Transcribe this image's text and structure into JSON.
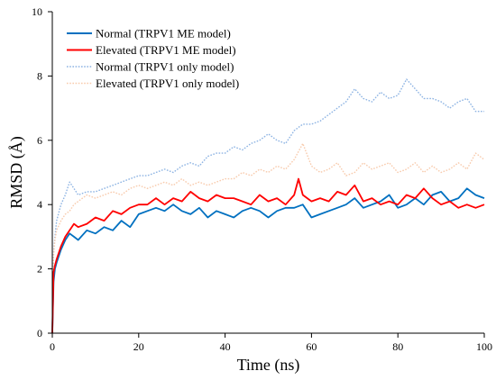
{
  "chart_data": {
    "type": "line",
    "xlabel": "Time (ns)",
    "ylabel": "RMSD (Å)",
    "xlim": [
      0,
      100
    ],
    "ylim": [
      0,
      10
    ],
    "x_ticks": [
      0,
      20,
      40,
      60,
      80,
      100
    ],
    "y_ticks": [
      0,
      2,
      4,
      6,
      8,
      10
    ],
    "grid": false,
    "legend_position": "top-left",
    "series": [
      {
        "name": "Normal (TRPV1 ME model)",
        "color": "#0070c0",
        "style": "solid",
        "x": [
          0,
          0.3,
          0.6,
          1,
          2,
          3,
          4,
          5,
          6,
          8,
          10,
          12,
          14,
          16,
          18,
          20,
          22,
          24,
          26,
          28,
          30,
          32,
          34,
          36,
          38,
          40,
          42,
          44,
          46,
          48,
          50,
          52,
          54,
          56,
          58,
          60,
          62,
          64,
          66,
          68,
          70,
          72,
          74,
          76,
          78,
          80,
          82,
          84,
          86,
          88,
          90,
          92,
          94,
          96,
          98,
          100
        ],
        "y": [
          0.0,
          1.6,
          2.0,
          2.2,
          2.6,
          2.9,
          3.1,
          3.0,
          2.9,
          3.2,
          3.1,
          3.3,
          3.2,
          3.5,
          3.3,
          3.7,
          3.8,
          3.9,
          3.8,
          4.0,
          3.8,
          3.7,
          3.9,
          3.6,
          3.8,
          3.7,
          3.6,
          3.8,
          3.9,
          3.8,
          3.6,
          3.8,
          3.9,
          3.9,
          4.0,
          3.6,
          3.7,
          3.8,
          3.9,
          4.0,
          4.2,
          3.9,
          4.0,
          4.1,
          4.3,
          3.9,
          4.0,
          4.2,
          4.0,
          4.3,
          4.4,
          4.1,
          4.2,
          4.5,
          4.3,
          4.2
        ]
      },
      {
        "name": "Elevated (TRPV1 ME model)",
        "color": "#ff0000",
        "style": "solid",
        "x": [
          0,
          0.3,
          0.6,
          1,
          2,
          3,
          4,
          5,
          6,
          8,
          10,
          12,
          14,
          16,
          18,
          20,
          22,
          24,
          26,
          28,
          30,
          32,
          34,
          36,
          38,
          40,
          42,
          44,
          46,
          48,
          50,
          52,
          54,
          56,
          57,
          58,
          60,
          62,
          64,
          66,
          68,
          70,
          72,
          74,
          76,
          78,
          80,
          82,
          84,
          86,
          88,
          90,
          92,
          94,
          96,
          98,
          100
        ],
        "y": [
          0.0,
          1.9,
          2.1,
          2.3,
          2.7,
          3.0,
          3.2,
          3.4,
          3.3,
          3.4,
          3.6,
          3.5,
          3.8,
          3.7,
          3.9,
          4.0,
          4.0,
          4.2,
          4.0,
          4.2,
          4.1,
          4.4,
          4.2,
          4.1,
          4.3,
          4.2,
          4.2,
          4.1,
          4.0,
          4.3,
          4.1,
          4.2,
          4.0,
          4.3,
          4.8,
          4.3,
          4.1,
          4.2,
          4.1,
          4.4,
          4.3,
          4.6,
          4.1,
          4.2,
          4.0,
          4.1,
          4.0,
          4.3,
          4.2,
          4.5,
          4.2,
          4.0,
          4.1,
          3.9,
          4.0,
          3.9,
          4.0
        ]
      },
      {
        "name": "Normal (TRPV1 only model)",
        "color": "#8eb4e3",
        "style": "dotted",
        "x": [
          0,
          0.3,
          0.6,
          1,
          2,
          3,
          4,
          5,
          6,
          8,
          10,
          12,
          14,
          16,
          18,
          20,
          22,
          24,
          26,
          28,
          30,
          32,
          34,
          36,
          38,
          40,
          42,
          44,
          46,
          48,
          50,
          52,
          54,
          56,
          58,
          60,
          62,
          64,
          66,
          68,
          70,
          72,
          74,
          76,
          78,
          80,
          82,
          84,
          86,
          88,
          90,
          92,
          94,
          96,
          98,
          100
        ],
        "y": [
          0.0,
          2.5,
          3.0,
          3.5,
          4.0,
          4.3,
          4.7,
          4.5,
          4.3,
          4.4,
          4.4,
          4.5,
          4.6,
          4.7,
          4.8,
          4.9,
          4.9,
          5.0,
          5.1,
          5.0,
          5.2,
          5.3,
          5.2,
          5.5,
          5.6,
          5.6,
          5.8,
          5.7,
          5.9,
          6.0,
          6.2,
          6.0,
          5.9,
          6.3,
          6.5,
          6.5,
          6.6,
          6.8,
          7.0,
          7.2,
          7.6,
          7.3,
          7.2,
          7.5,
          7.3,
          7.4,
          7.9,
          7.6,
          7.3,
          7.3,
          7.2,
          7.0,
          7.2,
          7.3,
          6.9,
          6.9
        ]
      },
      {
        "name": "Elevated (TRPV1 only model)",
        "color": "#f8cbad",
        "style": "dotted",
        "x": [
          0,
          0.3,
          0.6,
          1,
          2,
          3,
          4,
          5,
          6,
          8,
          10,
          12,
          14,
          16,
          18,
          20,
          22,
          24,
          26,
          28,
          30,
          32,
          34,
          36,
          38,
          40,
          42,
          44,
          46,
          48,
          50,
          52,
          54,
          56,
          58,
          60,
          62,
          64,
          66,
          68,
          70,
          72,
          74,
          76,
          78,
          80,
          82,
          84,
          86,
          88,
          90,
          92,
          94,
          96,
          98,
          100
        ],
        "y": [
          0.0,
          2.4,
          2.9,
          3.2,
          3.5,
          3.7,
          3.8,
          4.0,
          4.1,
          4.3,
          4.2,
          4.3,
          4.4,
          4.3,
          4.5,
          4.6,
          4.5,
          4.6,
          4.7,
          4.6,
          4.8,
          4.6,
          4.7,
          4.6,
          4.7,
          4.8,
          4.8,
          5.0,
          4.9,
          5.1,
          5.0,
          5.2,
          5.1,
          5.4,
          5.9,
          5.2,
          5.0,
          5.1,
          5.3,
          4.9,
          5.0,
          5.3,
          5.1,
          5.2,
          5.3,
          5.0,
          5.1,
          5.3,
          5.0,
          5.2,
          5.0,
          5.1,
          5.3,
          5.1,
          5.6,
          5.4
        ]
      }
    ]
  }
}
